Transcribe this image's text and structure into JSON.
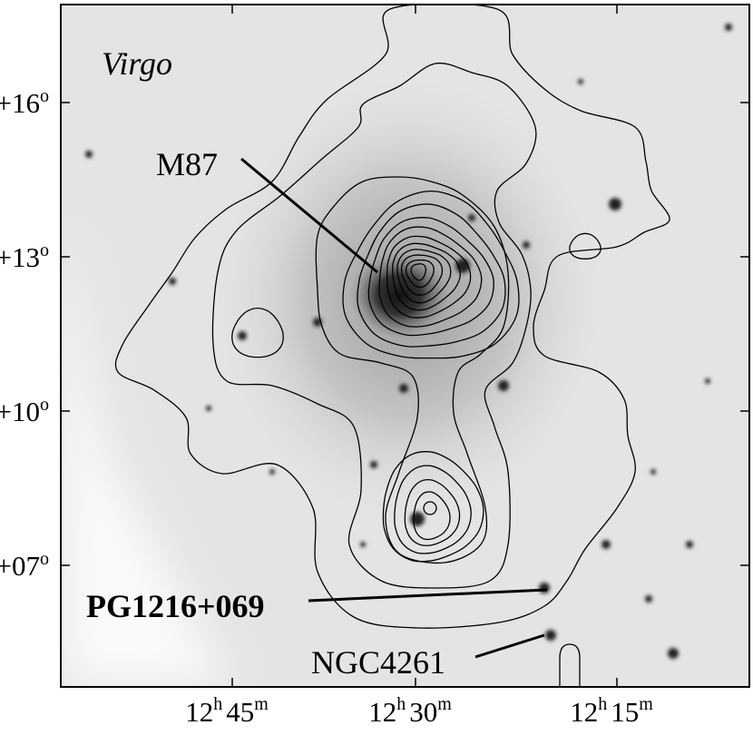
{
  "labels": {
    "region": "Virgo",
    "m87": "M87",
    "pg": "PG1216+069",
    "ngc": "NGC4261"
  },
  "y_axis": {
    "ticks": [
      {
        "deg": "+16",
        "sup": "o"
      },
      {
        "deg": "+13",
        "sup": "o"
      },
      {
        "deg": "+10",
        "sup": "o"
      },
      {
        "deg": "+07",
        "sup": "o"
      }
    ]
  },
  "x_axis": {
    "ticks": [
      {
        "h": "12",
        "hs": "h",
        "m": "45",
        "ms": "m"
      },
      {
        "h": "12",
        "hs": "h",
        "m": "30",
        "ms": "m"
      },
      {
        "h": "12",
        "hs": "h",
        "m": "15",
        "ms": "m"
      }
    ]
  }
}
